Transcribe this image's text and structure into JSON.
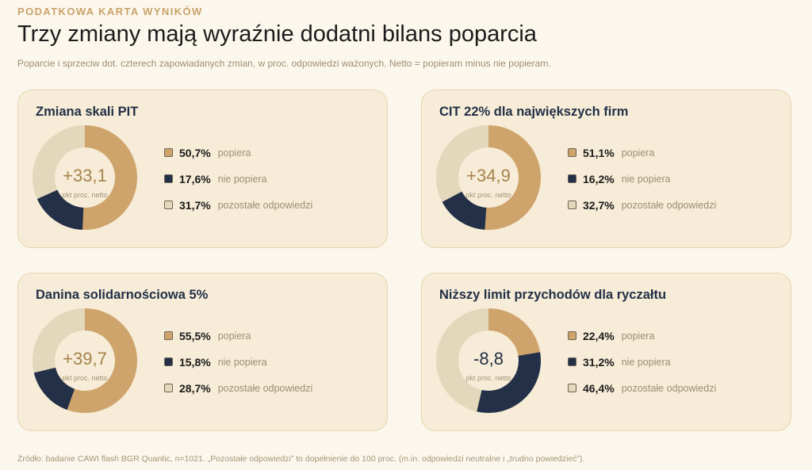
{
  "header": {
    "eyebrow": "PODATKOWA KARTA WYNIKÓW",
    "title": "Trzy zmiany mają wyraźnie dodatni bilans poparcia",
    "subtitle": "Poparcie i sprzeciw dot. czterech zapowiadanych zmian, w proc. odpowiedzi ważonych. Netto = popieram minus nie popieram."
  },
  "colors": {
    "support": "#cfa46c",
    "oppose": "#233047",
    "other": "#e3d8bb",
    "net_positive": "#a6834c",
    "net_negative": "#233047"
  },
  "chart_data": [
    {
      "type": "pie",
      "title": "Zmiana skali PIT",
      "net_value": "+33,1",
      "net_label": "pkt proc. netto",
      "slices": [
        {
          "key": "support",
          "label": "popiera",
          "value": 50.7,
          "display": "50,7%"
        },
        {
          "key": "oppose",
          "label": "nie popiera",
          "value": 17.6,
          "display": "17,6%"
        },
        {
          "key": "other",
          "label": "pozostałe odpowiedzi",
          "value": 31.7,
          "display": "31,7%"
        }
      ]
    },
    {
      "type": "pie",
      "title": "CIT 22% dla największych firm",
      "net_value": "+34,9",
      "net_label": "pkt proc. netto",
      "slices": [
        {
          "key": "support",
          "label": "popiera",
          "value": 51.1,
          "display": "51,1%"
        },
        {
          "key": "oppose",
          "label": "nie popiera",
          "value": 16.2,
          "display": "16,2%"
        },
        {
          "key": "other",
          "label": "pozostałe odpowiedzi",
          "value": 32.7,
          "display": "32,7%"
        }
      ]
    },
    {
      "type": "pie",
      "title": "Danina solidarnościowa 5%",
      "net_value": "+39,7",
      "net_label": "pkt proc. netto",
      "slices": [
        {
          "key": "support",
          "label": "popiera",
          "value": 55.5,
          "display": "55,5%"
        },
        {
          "key": "oppose",
          "label": "nie popiera",
          "value": 15.8,
          "display": "15,8%"
        },
        {
          "key": "other",
          "label": "pozostałe odpowiedzi",
          "value": 28.7,
          "display": "28,7%"
        }
      ]
    },
    {
      "type": "pie",
      "title": "Niższy limit przychodów dla ryczałtu",
      "net_value": "-8,8",
      "net_label": "pkt proc. netto",
      "slices": [
        {
          "key": "support",
          "label": "popiera",
          "value": 22.4,
          "display": "22,4%"
        },
        {
          "key": "oppose",
          "label": "nie popiera",
          "value": 31.2,
          "display": "31,2%"
        },
        {
          "key": "other",
          "label": "pozostałe odpowiedzi",
          "value": 46.4,
          "display": "46,4%"
        }
      ]
    }
  ],
  "footer": {
    "source": "Źródło: badanie CAWI flash BGR Quantic, n=1021. „Pozostałe odpowiedzi” to dopełnienie do 100 proc. (m.in. odpowiedzi neutralne i „trudno powiedzieć”)."
  }
}
